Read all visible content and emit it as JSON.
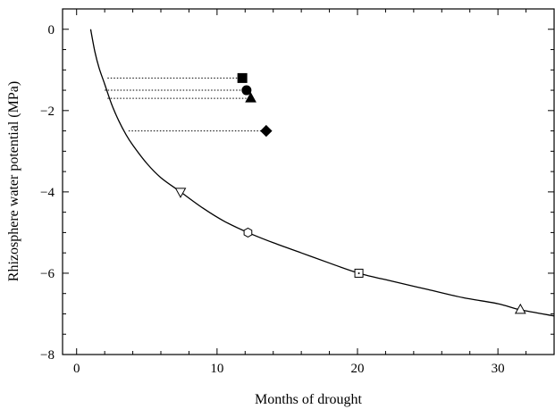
{
  "chart_data": {
    "type": "line",
    "title": "",
    "xlabel": "Months of drought",
    "ylabel": "Rhizosphere water potential (MPa)",
    "xlim": [
      -1,
      34
    ],
    "ylim": [
      -8,
      0.5
    ],
    "x_ticks": [
      0,
      10,
      20,
      30
    ],
    "y_ticks": [
      0,
      -2,
      -4,
      -6,
      -8
    ],
    "x_tick_labels": [
      "0",
      "10",
      "20",
      "30"
    ],
    "y_tick_labels": [
      "0",
      "−2",
      "−4",
      "−6",
      "−8"
    ],
    "grid": false,
    "legend": "none",
    "curve": {
      "x": [
        1.0,
        1.3,
        1.6,
        2.0,
        2.5,
        3.0,
        3.5,
        4.0,
        5.0,
        6.0,
        7.4,
        9.0,
        10.5,
        12.2,
        14.0,
        16.0,
        18.0,
        20.1,
        22.5,
        25.0,
        27.5,
        30.0,
        31.6,
        34.0
      ],
      "y": [
        0.0,
        -0.55,
        -0.95,
        -1.35,
        -1.85,
        -2.25,
        -2.58,
        -2.85,
        -3.3,
        -3.65,
        -4.0,
        -4.4,
        -4.72,
        -5.0,
        -5.25,
        -5.5,
        -5.75,
        -6.0,
        -6.2,
        -6.4,
        -6.6,
        -6.75,
        -6.9,
        -7.05
      ],
      "color": "#000000"
    },
    "curve_markers": [
      {
        "x": 7.4,
        "y": -4.0,
        "shape": "triangle-down",
        "filled": false
      },
      {
        "x": 12.2,
        "y": -5.0,
        "shape": "hexagon",
        "filled": false
      },
      {
        "x": 20.1,
        "y": -6.0,
        "shape": "square-dot",
        "filled": false
      },
      {
        "x": 31.6,
        "y": -6.9,
        "shape": "triangle-up",
        "filled": false
      }
    ],
    "filled_markers": [
      {
        "x": 11.8,
        "y": -1.2,
        "line_from_x": 2.2,
        "shape": "square",
        "filled": true
      },
      {
        "x": 12.1,
        "y": -1.5,
        "line_from_x": 2.0,
        "shape": "circle",
        "filled": true
      },
      {
        "x": 12.4,
        "y": -1.7,
        "line_from_x": 2.2,
        "shape": "triangle-up",
        "filled": true
      },
      {
        "x": 13.5,
        "y": -2.5,
        "line_from_x": 3.7,
        "shape": "diamond",
        "filled": true
      }
    ]
  }
}
